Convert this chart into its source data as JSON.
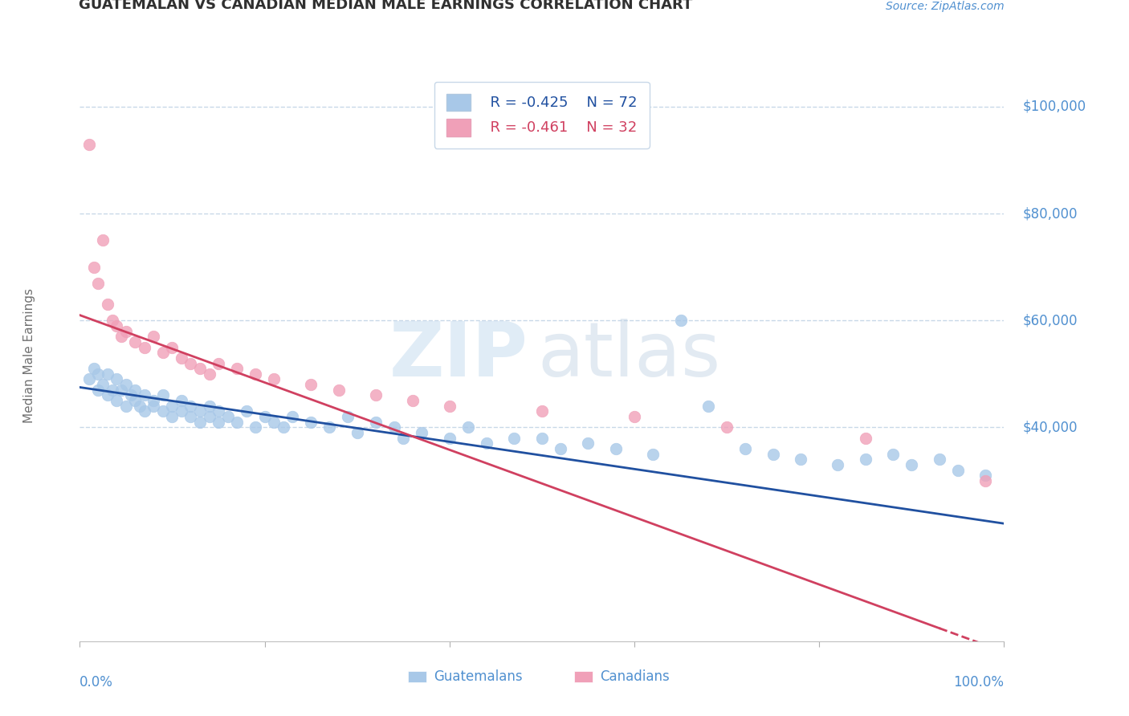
{
  "title": "GUATEMALAN VS CANADIAN MEDIAN MALE EARNINGS CORRELATION CHART",
  "source": "Source: ZipAtlas.com",
  "ylabel": "Median Male Earnings",
  "background_color": "#ffffff",
  "grid_color": "#c8d8e8",
  "watermark_zip": "ZIP",
  "watermark_atlas": "atlas",
  "legend_r1": "R = -0.425",
  "legend_n1": "N = 72",
  "legend_r2": "R = -0.461",
  "legend_n2": "N = 32",
  "series1_color": "#a8c8e8",
  "series2_color": "#f0a0b8",
  "line1_color": "#2050a0",
  "line2_color": "#d04060",
  "title_color": "#303030",
  "axis_label_color": "#5090d0",
  "ylabel_color": "#707070",
  "source_color": "#5090d0",
  "scatter1_x": [
    0.01,
    0.015,
    0.02,
    0.02,
    0.025,
    0.03,
    0.03,
    0.035,
    0.04,
    0.04,
    0.045,
    0.05,
    0.05,
    0.055,
    0.06,
    0.06,
    0.065,
    0.07,
    0.07,
    0.08,
    0.08,
    0.09,
    0.09,
    0.1,
    0.1,
    0.11,
    0.11,
    0.12,
    0.12,
    0.13,
    0.13,
    0.14,
    0.14,
    0.15,
    0.15,
    0.16,
    0.17,
    0.18,
    0.19,
    0.2,
    0.21,
    0.22,
    0.23,
    0.25,
    0.27,
    0.29,
    0.3,
    0.32,
    0.34,
    0.35,
    0.37,
    0.4,
    0.42,
    0.44,
    0.47,
    0.5,
    0.52,
    0.55,
    0.58,
    0.62,
    0.65,
    0.68,
    0.72,
    0.75,
    0.78,
    0.82,
    0.85,
    0.88,
    0.9,
    0.93,
    0.95,
    0.98
  ],
  "scatter1_y": [
    49000,
    51000,
    47000,
    50000,
    48000,
    46000,
    50000,
    47000,
    49000,
    45000,
    47000,
    48000,
    44000,
    46000,
    45000,
    47000,
    44000,
    46000,
    43000,
    45000,
    44000,
    43000,
    46000,
    44000,
    42000,
    43000,
    45000,
    42000,
    44000,
    43000,
    41000,
    42000,
    44000,
    43000,
    41000,
    42000,
    41000,
    43000,
    40000,
    42000,
    41000,
    40000,
    42000,
    41000,
    40000,
    42000,
    39000,
    41000,
    40000,
    38000,
    39000,
    38000,
    40000,
    37000,
    38000,
    38000,
    36000,
    37000,
    36000,
    35000,
    60000,
    44000,
    36000,
    35000,
    34000,
    33000,
    34000,
    35000,
    33000,
    34000,
    32000,
    31000
  ],
  "scatter2_x": [
    0.01,
    0.015,
    0.02,
    0.025,
    0.03,
    0.035,
    0.04,
    0.045,
    0.05,
    0.06,
    0.07,
    0.08,
    0.09,
    0.1,
    0.11,
    0.12,
    0.13,
    0.14,
    0.15,
    0.17,
    0.19,
    0.21,
    0.25,
    0.28,
    0.32,
    0.36,
    0.4,
    0.5,
    0.6,
    0.7,
    0.85,
    0.98
  ],
  "scatter2_y": [
    93000,
    70000,
    67000,
    75000,
    63000,
    60000,
    59000,
    57000,
    58000,
    56000,
    55000,
    57000,
    54000,
    55000,
    53000,
    52000,
    51000,
    50000,
    52000,
    51000,
    50000,
    49000,
    48000,
    47000,
    46000,
    45000,
    44000,
    43000,
    42000,
    40000,
    38000,
    30000
  ],
  "xlim": [
    0.0,
    1.0
  ],
  "ylim": [
    0,
    107000
  ],
  "line1_x0": 0.0,
  "line1_y0": 47500,
  "line1_x1": 1.0,
  "line1_y1": 22000,
  "line2_x0": 0.0,
  "line2_y0": 61000,
  "line2_x1": 1.0,
  "line2_y1": -2000,
  "line2_dash_start": 0.93,
  "ytick_vals": [
    40000,
    60000,
    80000,
    100000
  ],
  "ytick_labels": [
    "$40,000",
    "$60,000",
    "$80,000",
    "$100,000"
  ],
  "xtick_vals": [
    0.0,
    0.2,
    0.4,
    0.6,
    0.8,
    1.0
  ]
}
